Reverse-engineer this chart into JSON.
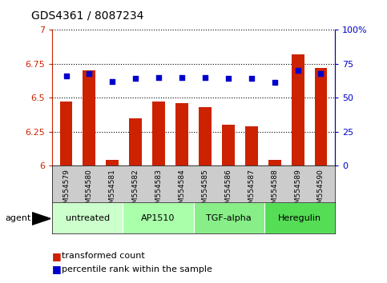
{
  "title": "GDS4361 / 8087234",
  "samples": [
    "GSM554579",
    "GSM554580",
    "GSM554581",
    "GSM554582",
    "GSM554583",
    "GSM554584",
    "GSM554585",
    "GSM554586",
    "GSM554587",
    "GSM554588",
    "GSM554589",
    "GSM554590"
  ],
  "bar_values": [
    6.47,
    6.7,
    6.04,
    6.35,
    6.47,
    6.46,
    6.43,
    6.3,
    6.29,
    6.04,
    6.82,
    6.72
  ],
  "dot_values": [
    66,
    68,
    62,
    64,
    65,
    65,
    65,
    64,
    64,
    61,
    70,
    68
  ],
  "bar_color": "#cc2200",
  "dot_color": "#0000cc",
  "ylim_left": [
    6.0,
    7.0
  ],
  "ylim_right": [
    0,
    100
  ],
  "yticks_left": [
    6.0,
    6.25,
    6.5,
    6.75,
    7.0
  ],
  "yticks_right": [
    0,
    25,
    50,
    75,
    100
  ],
  "ytick_labels_left": [
    "6",
    "6.25",
    "6.5",
    "6.75",
    "7"
  ],
  "ytick_labels_right": [
    "0",
    "25",
    "50",
    "75",
    "100%"
  ],
  "groups": [
    {
      "label": "untreated",
      "start": 0,
      "end": 3,
      "color": "#ccffcc"
    },
    {
      "label": "AP1510",
      "start": 3,
      "end": 6,
      "color": "#aaffaa"
    },
    {
      "label": "TGF-alpha",
      "start": 6,
      "end": 9,
      "color": "#88ee88"
    },
    {
      "label": "Heregulin",
      "start": 9,
      "end": 12,
      "color": "#55dd55"
    }
  ],
  "agent_label": "agent",
  "legend_items": [
    {
      "label": "transformed count",
      "color": "#cc2200"
    },
    {
      "label": "percentile rank within the sample",
      "color": "#0000cc"
    }
  ],
  "grid_color": "#000000",
  "tick_label_color_left": "#cc2200",
  "tick_label_color_right": "#0000cc",
  "bar_bottom": 6.0,
  "xticklabel_bg": "#cccccc"
}
